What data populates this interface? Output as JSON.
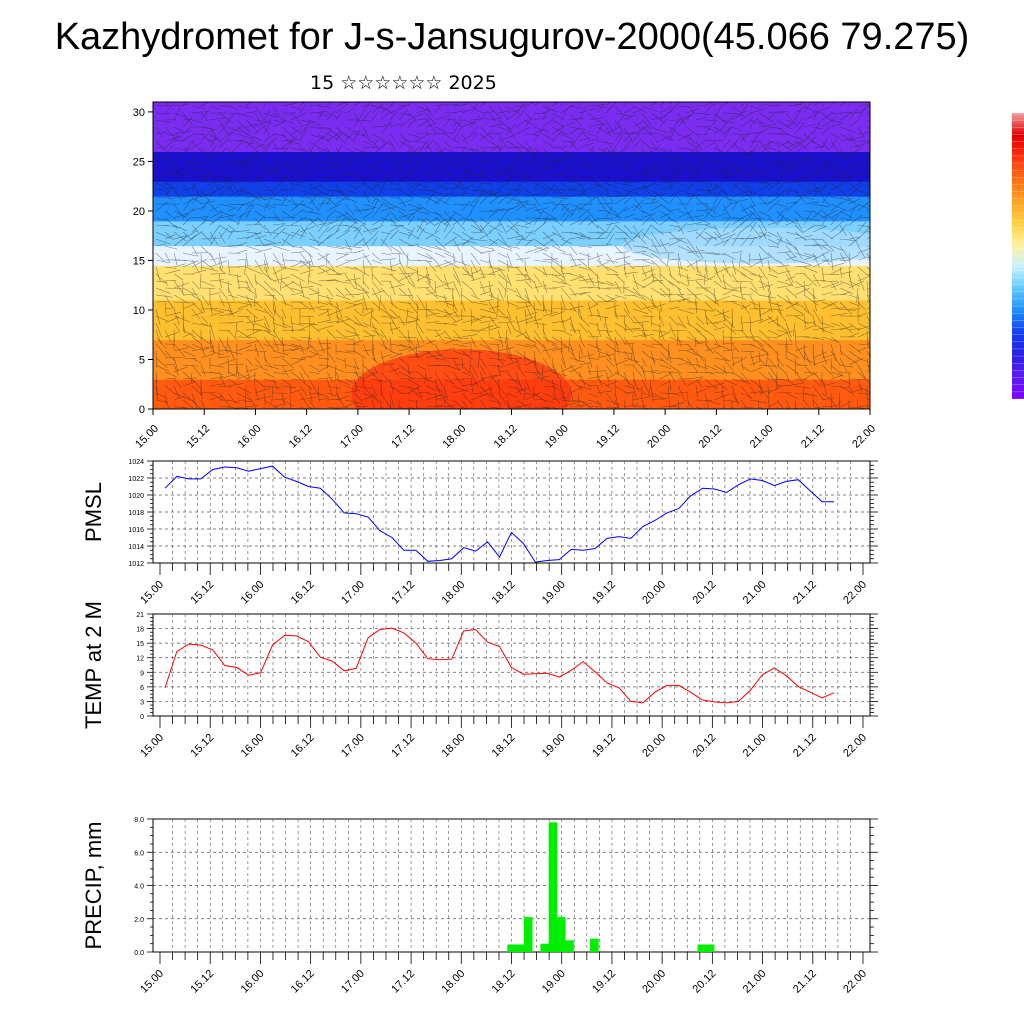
{
  "title": "Kazhydromet for J-s-Jansugurov-2000(45.066 79.275)",
  "subtitle": "15 ☆☆☆☆☆☆ 2025",
  "colorbar": {
    "colors": [
      "#7f00ff",
      "#5a1cf0",
      "#2a20e0",
      "#1040f0",
      "#1e8cff",
      "#5cc8ff",
      "#c8f0ff",
      "#fff0a0",
      "#ffd040",
      "#ffa020",
      "#ff7010",
      "#ff3010",
      "#e00000",
      "#f0a0a0"
    ]
  },
  "chart_data": [
    {
      "type": "heatmap",
      "name": "wind-temperature cross-section",
      "x_ticks": [
        "15.00",
        "15.12",
        "16.00",
        "16.12",
        "17.00",
        "17.12",
        "18.00",
        "18.12",
        "19.00",
        "19.12",
        "20.00",
        "20.12",
        "21.00",
        "21.12",
        "22.00"
      ],
      "y_ticks": [
        0,
        5,
        10,
        15,
        20,
        25,
        30
      ],
      "ylim": [
        0,
        31
      ],
      "bands_description": "warm (red/orange) near surface, yellow up to ~15, blue 17-22, dark blue ~24, violet above 26",
      "layers": [
        {
          "from": 0,
          "to": 3,
          "color": "#ff5a10"
        },
        {
          "from": 3,
          "to": 7,
          "color": "#ff9020"
        },
        {
          "from": 7,
          "to": 11,
          "color": "#ffc030"
        },
        {
          "from": 11,
          "to": 14.5,
          "color": "#ffe070"
        },
        {
          "from": 14.5,
          "to": 16.5,
          "color": "#e8f4ff"
        },
        {
          "from": 16.5,
          "to": 19,
          "color": "#7cd0ff"
        },
        {
          "from": 19,
          "to": 21.5,
          "color": "#2090ff"
        },
        {
          "from": 21.5,
          "to": 23,
          "color": "#1040e8"
        },
        {
          "from": 23,
          "to": 26,
          "color": "#1a10d0"
        },
        {
          "from": 26,
          "to": 31,
          "color": "#7a2cf0"
        }
      ]
    },
    {
      "type": "line",
      "ylabel": "PMSL",
      "ylim": [
        1012,
        1024
      ],
      "y_ticks": [
        1012,
        1014,
        1016,
        1018,
        1020,
        1022,
        1024
      ],
      "x_ticks": [
        "15.00",
        "15.12",
        "16.00",
        "16.12",
        "17.00",
        "17.12",
        "18.00",
        "18.12",
        "19.00",
        "19.12",
        "20.00",
        "20.12",
        "21.00",
        "21.12",
        "22.00"
      ],
      "color": "#0000ff",
      "values": [
        1020.8,
        1022.2,
        1021.9,
        1021.9,
        1023.0,
        1023.3,
        1023.2,
        1022.8,
        1023.1,
        1023.4,
        1022.1,
        1021.6,
        1021.0,
        1020.8,
        1019.5,
        1017.9,
        1017.8,
        1017.4,
        1015.8,
        1015.0,
        1013.5,
        1013.5,
        1012.2,
        1012.3,
        1012.5,
        1013.8,
        1013.4,
        1014.5,
        1012.7,
        1015.6,
        1014.3,
        1012.1,
        1012.3,
        1012.4,
        1013.6,
        1013.5,
        1013.7,
        1014.9,
        1015.1,
        1014.9,
        1016.3,
        1017.0,
        1017.9,
        1018.4,
        1019.9,
        1020.8,
        1020.7,
        1020.3,
        1021.2,
        1021.9,
        1021.7,
        1021.1,
        1021.6,
        1021.8,
        1020.5,
        1019.2,
        1019.2
      ]
    },
    {
      "type": "line",
      "ylabel": "TEMP at 2 M",
      "ylim": [
        0,
        21
      ],
      "y_ticks": [
        0,
        3,
        6,
        9,
        12,
        15,
        18,
        21
      ],
      "x_ticks": [
        "15.00",
        "15.12",
        "16.00",
        "16.12",
        "17.00",
        "17.12",
        "18.00",
        "18.12",
        "19.00",
        "19.12",
        "20.00",
        "20.12",
        "21.00",
        "21.12",
        "22.00"
      ],
      "color": "#ff0000",
      "values": [
        5.8,
        13.3,
        14.8,
        14.6,
        13.6,
        10.4,
        10.0,
        8.4,
        8.9,
        14.6,
        16.6,
        16.5,
        15.3,
        12.1,
        11.3,
        9.3,
        9.8,
        16.1,
        17.8,
        18.1,
        17.1,
        15.0,
        11.8,
        11.6,
        11.7,
        17.5,
        17.8,
        15.2,
        14.3,
        10.0,
        8.6,
        8.7,
        8.8,
        8.0,
        9.4,
        11.2,
        9.1,
        6.8,
        5.8,
        3.0,
        2.7,
        4.9,
        6.3,
        6.3,
        4.9,
        3.3,
        2.9,
        2.7,
        3.0,
        5.3,
        8.5,
        9.9,
        8.3,
        6.1,
        4.9,
        3.7,
        4.8
      ]
    },
    {
      "type": "bar",
      "ylabel": "PRECIP, mm",
      "ylim": [
        0,
        8
      ],
      "y_ticks": [
        "0.0",
        "2.0",
        "4.0",
        "6.0",
        "8.0"
      ],
      "x_ticks": [
        "15.00",
        "15.12",
        "16.00",
        "16.12",
        "17.00",
        "17.12",
        "18.00",
        "18.12",
        "19.00",
        "19.12",
        "20.00",
        "20.12",
        "21.00",
        "21.12",
        "22.00"
      ],
      "color": "#00ee00",
      "values": [
        0,
        0,
        0,
        0,
        0,
        0,
        0,
        0,
        0,
        0,
        0,
        0,
        0,
        0,
        0,
        0,
        0,
        0,
        0,
        0,
        0,
        0,
        0,
        0,
        0,
        0,
        0,
        0,
        0,
        0,
        0,
        0,
        0,
        0,
        0,
        0,
        0,
        0,
        0,
        0,
        0,
        0,
        0.45,
        0.45,
        2.1,
        0,
        0.5,
        7.8,
        2.1,
        0.7,
        0,
        0,
        0.8,
        0,
        0,
        0,
        0,
        0,
        0,
        0,
        0,
        0,
        0,
        0,
        0,
        0.45,
        0.45,
        0,
        0,
        0,
        0,
        0,
        0,
        0,
        0,
        0,
        0,
        0,
        0,
        0,
        0,
        0,
        0,
        0,
        0
      ]
    }
  ]
}
